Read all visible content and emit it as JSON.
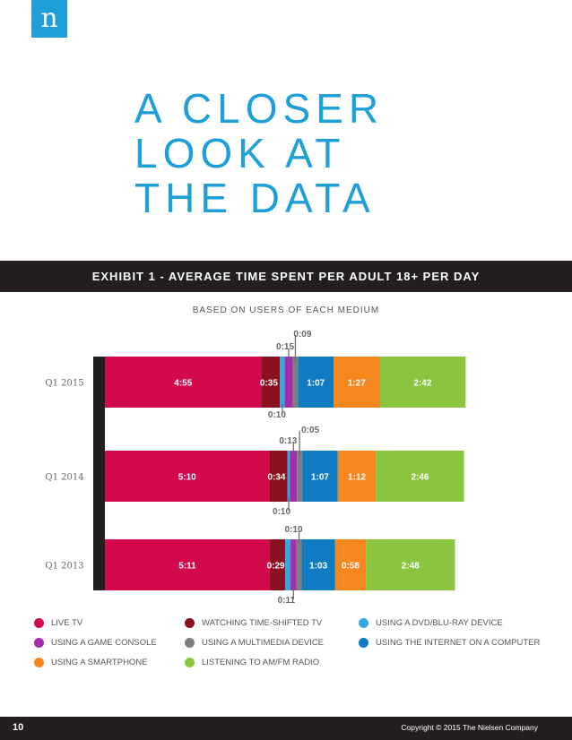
{
  "logo": {
    "letter": "n"
  },
  "headline": {
    "lines": [
      "A CLOSER",
      "LOOK AT",
      "THE DATA"
    ]
  },
  "exhibit_title": "EXHIBIT 1 - AVERAGE TIME SPENT PER ADULT 18+ PER DAY",
  "chart_subtitle": "BASED ON USERS OF EACH MEDIUM",
  "colors": {
    "live_tv": "#d20a4b",
    "time_shifted": "#8a1220",
    "dvd": "#35a9df",
    "game_console": "#a52dad",
    "multimedia": "#7f7f7f",
    "internet": "#0f7bc3",
    "smartphone": "#f5871f",
    "radio": "#8bc53f"
  },
  "chart_data": {
    "type": "bar",
    "orientation": "horizontal",
    "stacked": true,
    "unit": "h:mm",
    "categories": [
      "Q1 2015",
      "Q1 2014",
      "Q1 2013"
    ],
    "series": [
      {
        "name": "LIVE TV",
        "color_key": "live_tv",
        "labels": [
          "4:55",
          "5:10",
          "5:11"
        ],
        "values": [
          295,
          310,
          311
        ]
      },
      {
        "name": "WATCHING TIME-SHIFTED TV",
        "color_key": "time_shifted",
        "labels": [
          "0:35",
          "0:34",
          "0:29"
        ],
        "values": [
          35,
          34,
          29
        ]
      },
      {
        "name": "USING A DVD/BLU-RAY DEVICE",
        "color_key": "dvd",
        "labels": [
          "0:09",
          "0:05",
          "0:10"
        ],
        "values": [
          9,
          5,
          10
        ]
      },
      {
        "name": "USING A GAME CONSOLE",
        "color_key": "game_console",
        "labels": [
          "0:15",
          "0:13",
          "0:11"
        ],
        "values": [
          15,
          13,
          11
        ]
      },
      {
        "name": "USING A MULTIMEDIA DEVICE",
        "color_key": "multimedia",
        "labels": [
          "0:10",
          "0:10",
          "0:10"
        ],
        "values": [
          10,
          10,
          10
        ]
      },
      {
        "name": "USING THE INTERNET ON A COMPUTER",
        "color_key": "internet",
        "labels": [
          "1:07",
          "1:07",
          "1:03"
        ],
        "values": [
          67,
          67,
          63
        ]
      },
      {
        "name": "USING A SMARTPHONE",
        "color_key": "smartphone",
        "labels": [
          "1:27",
          "1:12",
          "0:58"
        ],
        "values": [
          87,
          72,
          58
        ]
      },
      {
        "name": "LISTENING TO AM/FM RADIO",
        "color_key": "radio",
        "labels": [
          "2:42",
          "2:46",
          "2:48"
        ],
        "values": [
          162,
          166,
          168
        ]
      }
    ]
  },
  "legend": [
    {
      "label": "LIVE TV",
      "color_key": "live_tv"
    },
    {
      "label": "WATCHING TIME-SHIFTED TV",
      "color_key": "time_shifted"
    },
    {
      "label": "USING A DVD/BLU-RAY DEVICE",
      "color_key": "dvd"
    },
    {
      "label": "USING A GAME CONSOLE",
      "color_key": "game_console"
    },
    {
      "label": "USING A MULTIMEDIA DEVICE",
      "color_key": "multimedia"
    },
    {
      "label": "USING THE INTERNET ON A COMPUTER",
      "color_key": "internet"
    },
    {
      "label": "USING A SMARTPHONE",
      "color_key": "smartphone"
    },
    {
      "label": "LISTENING TO AM/FM RADIO",
      "color_key": "radio"
    }
  ],
  "footer": {
    "page_number": "10",
    "copyright": "Copyright © 2015 The Nielsen Company"
  }
}
